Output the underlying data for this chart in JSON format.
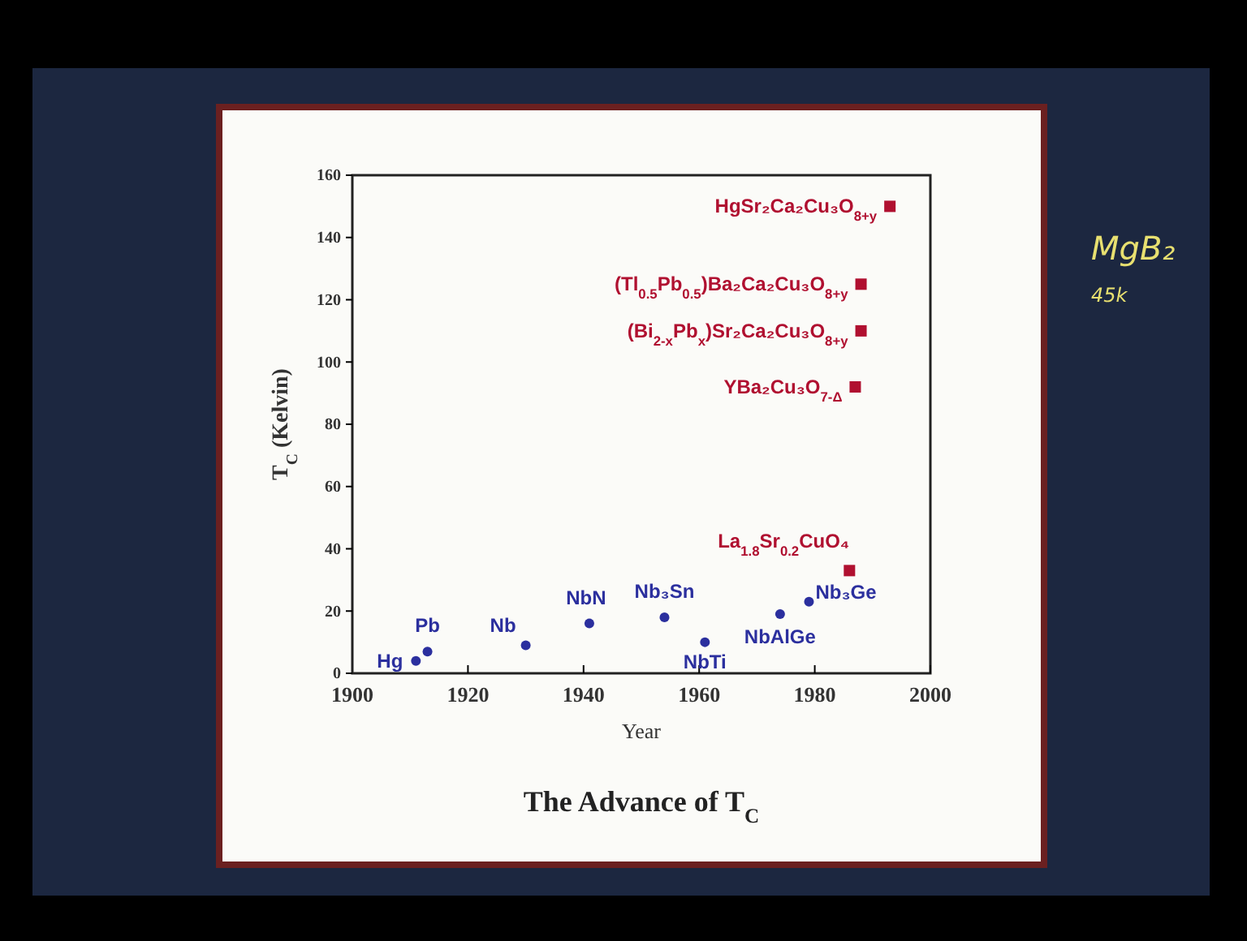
{
  "chart_data": {
    "type": "scatter",
    "title": "The Advance of T$_{C}$",
    "xlabel": "Year",
    "ylabel": "T$_{C}$ (Kelvin)",
    "xlim": [
      1900,
      2000
    ],
    "xticks": [
      1900,
      1920,
      1940,
      1960,
      1980,
      2000
    ],
    "ylim": [
      0,
      160
    ],
    "yticks": [
      0,
      20,
      40,
      60,
      80,
      100,
      120,
      140,
      160
    ],
    "grid": false,
    "series": [
      {
        "color": "#2b2f9e",
        "marker": "circle",
        "x": [
          1911,
          1913,
          1930,
          1941,
          1954,
          1961,
          1974,
          1979
        ],
        "values": [
          4,
          7,
          9,
          16,
          18,
          10,
          19,
          23
        ]
      },
      {
        "color": "#b01030",
        "marker": "square",
        "x": [
          1986,
          1987,
          1988,
          1988,
          1993
        ],
        "values": [
          33,
          92,
          110,
          125,
          150
        ]
      }
    ],
    "annotations": [
      {
        "text": "Hg",
        "x": 1911,
        "y": 4
      },
      {
        "text": "Pb",
        "x": 1913,
        "y": 7
      },
      {
        "text": "Nb",
        "x": 1930,
        "y": 9
      },
      {
        "text": "NbN",
        "x": 1941,
        "y": 16
      },
      {
        "text": "Nb₃Sn",
        "x": 1954,
        "y": 18
      },
      {
        "text": "NbTi",
        "x": 1961,
        "y": 10
      },
      {
        "text": "NbAlGe",
        "x": 1974,
        "y": 19
      },
      {
        "text": "Nb₃Ge",
        "x": 1979,
        "y": 23
      },
      {
        "text": "La$_{1.8}$Sr$_{0.2}$CuO₄",
        "x": 1986,
        "y": 33
      },
      {
        "text": "YBa₂Cu₃O$_{7-Δ}$",
        "x": 1987,
        "y": 92
      },
      {
        "text": "(Bi$_{2-x}$Pb$_{x}$)Sr₂Ca₂Cu₃O$_{8+y}$",
        "x": 1988,
        "y": 110
      },
      {
        "text": "(Tl$_{0.5}$Pb$_{0.5}$)Ba₂Ca₂Cu₃O$_{8+y}$",
        "x": 1988,
        "y": 125
      },
      {
        "text": "HgSr₂Ca₂Cu₃O$_{8+y}$",
        "x": 1993,
        "y": 150
      },
      "MgB₂",
      "45k"
    ]
  }
}
